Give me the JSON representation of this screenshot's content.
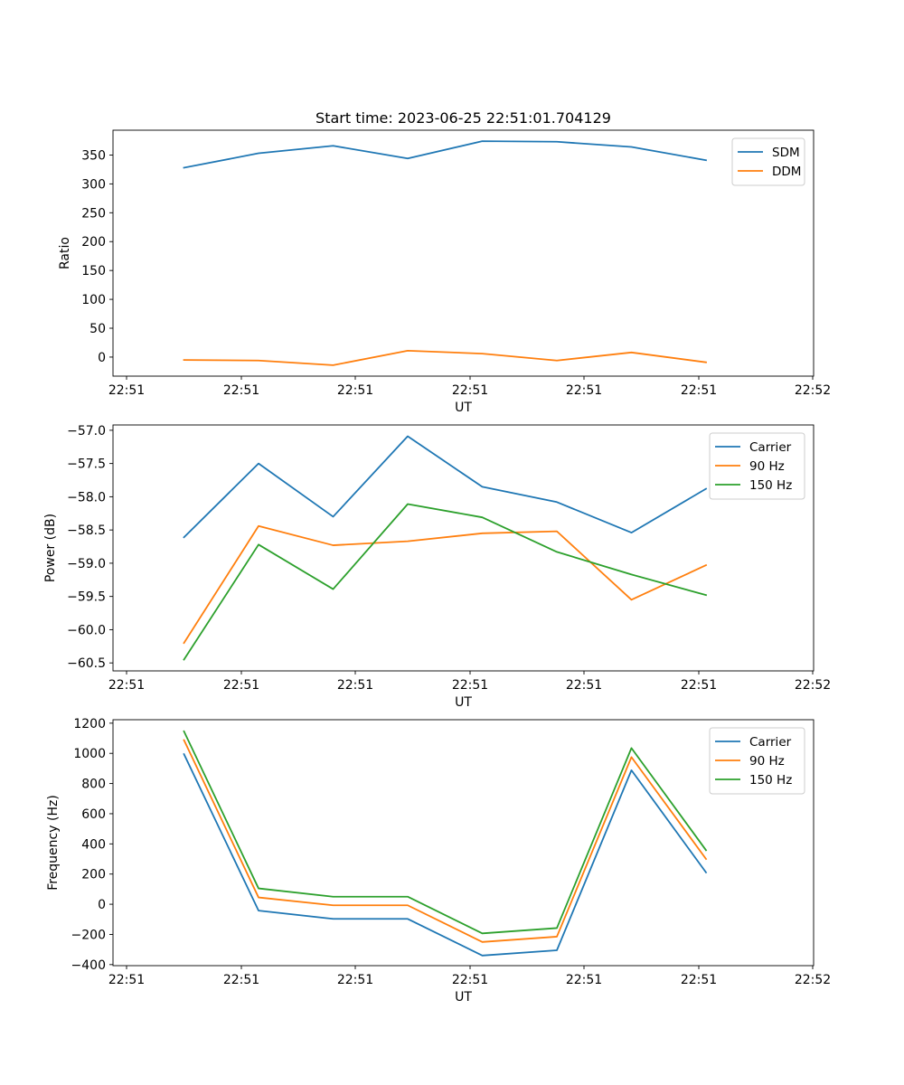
{
  "figure_title": "Start time: 2023-06-25 22:51:01.704129",
  "colors": {
    "blue": "#1f77b4",
    "orange": "#ff7f0e",
    "green": "#2ca02c"
  },
  "chart_data": [
    {
      "type": "line",
      "title": "Start time: 2023-06-25 22:51:01.704129",
      "xlabel": "UT",
      "ylabel": "Ratio",
      "x_tick_labels": [
        "22:51",
        "22:51",
        "22:51",
        "22:51",
        "22:51",
        "22:51",
        "22:52"
      ],
      "y_ticks": [
        0,
        50,
        100,
        150,
        200,
        250,
        300,
        350
      ],
      "ylim": [
        -33,
        393
      ],
      "grid": false,
      "legend_position": "upper right",
      "series": [
        {
          "name": "SDM",
          "color": "#1f77b4",
          "values": [
            328,
            353,
            366,
            344,
            374,
            373,
            364,
            341
          ]
        },
        {
          "name": "DDM",
          "color": "#ff7f0e",
          "values": [
            -5,
            -6,
            -14,
            11,
            6,
            -6,
            8,
            -9
          ]
        }
      ]
    },
    {
      "type": "line",
      "xlabel": "UT",
      "ylabel": "Power (dB)",
      "x_tick_labels": [
        "22:51",
        "22:51",
        "22:51",
        "22:51",
        "22:51",
        "22:51",
        "22:52"
      ],
      "y_ticks": [
        -60.5,
        -60.0,
        -59.5,
        -59.0,
        -58.5,
        -58.0,
        -57.5,
        -57.0
      ],
      "y_tick_labels": [
        "−60.5",
        "−60.0",
        "−59.5",
        "−59.0",
        "−58.5",
        "−58.0",
        "−57.5",
        "−57.0"
      ],
      "ylim": [
        -60.62,
        -56.92
      ],
      "grid": false,
      "legend_position": "upper right",
      "series": [
        {
          "name": "Carrier",
          "color": "#1f77b4",
          "values": [
            -58.61,
            -57.5,
            -58.3,
            -57.09,
            -57.85,
            -58.08,
            -58.54,
            -57.88
          ]
        },
        {
          "name": "90 Hz",
          "color": "#ff7f0e",
          "values": [
            -60.2,
            -58.44,
            -58.73,
            -58.67,
            -58.55,
            -58.52,
            -59.55,
            -59.03
          ]
        },
        {
          "name": "150 Hz",
          "color": "#2ca02c",
          "values": [
            -60.45,
            -58.72,
            -59.39,
            -58.11,
            -58.31,
            -58.83,
            -59.17,
            -59.48
          ]
        }
      ]
    },
    {
      "type": "line",
      "xlabel": "UT",
      "ylabel": "Frequency (Hz)",
      "x_tick_labels": [
        "22:51",
        "22:51",
        "22:51",
        "22:51",
        "22:51",
        "22:51",
        "22:52"
      ],
      "y_ticks": [
        -400,
        -200,
        0,
        200,
        400,
        600,
        800,
        1000,
        1200
      ],
      "y_tick_labels": [
        "−400",
        "−200",
        "0",
        "200",
        "400",
        "600",
        "800",
        "1000",
        "1200"
      ],
      "ylim": [
        -407,
        1223
      ],
      "grid": false,
      "legend_position": "upper right",
      "series": [
        {
          "name": "Carrier",
          "color": "#1f77b4",
          "values": [
            995,
            -42,
            -97,
            -97,
            -340,
            -305,
            888,
            211
          ]
        },
        {
          "name": "90 Hz",
          "color": "#ff7f0e",
          "values": [
            1088,
            45,
            -7,
            -7,
            -250,
            -215,
            975,
            300
          ]
        },
        {
          "name": "150 Hz",
          "color": "#2ca02c",
          "values": [
            1146,
            105,
            50,
            50,
            -193,
            -158,
            1035,
            358
          ]
        }
      ]
    }
  ]
}
